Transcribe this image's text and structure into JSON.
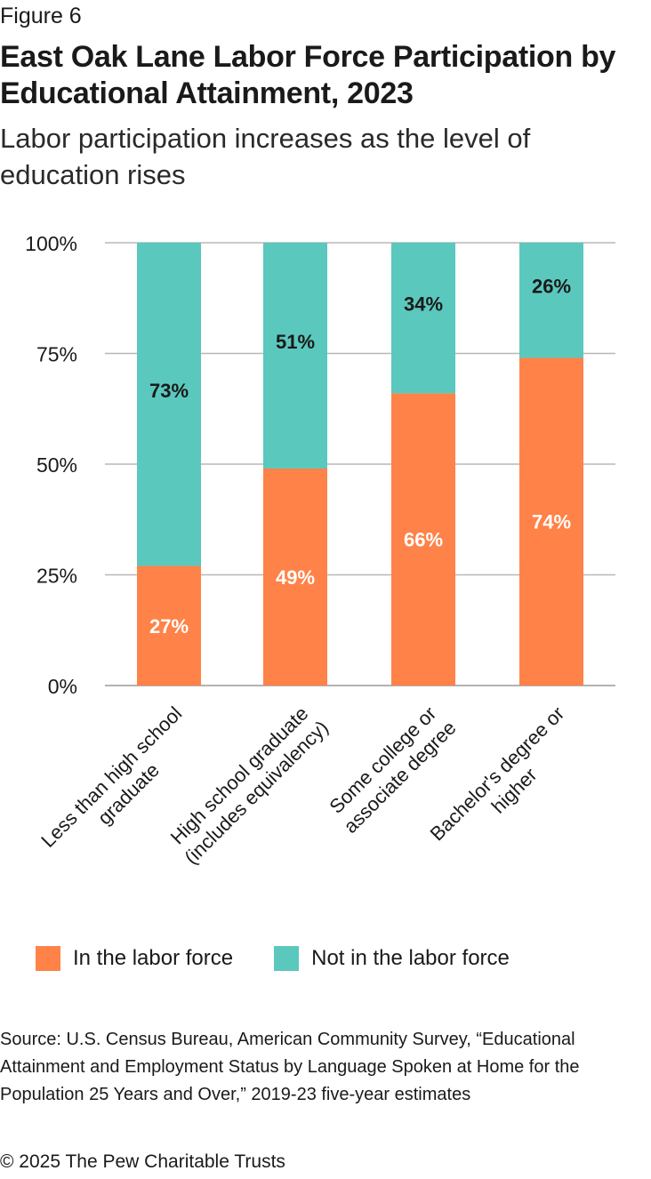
{
  "header": {
    "figure_label": "Figure 6",
    "title": "East Oak Lane Labor Force Participation by Educational Attainment, 2023",
    "subtitle": "Labor participation increases as the level of education rises"
  },
  "chart_data": {
    "type": "bar",
    "stacked": true,
    "categories": [
      [
        "Less than high school",
        "graduate"
      ],
      [
        "High school graduate",
        "(includes equivalency)"
      ],
      [
        "Some college or",
        "associate degree"
      ],
      [
        "Bachelor's degree or",
        "higher"
      ]
    ],
    "series": [
      {
        "name": "In the labor force",
        "color": "#FF8248",
        "label_color": "#ffffff",
        "values": [
          27,
          49,
          66,
          74
        ]
      },
      {
        "name": "Not in the labor force",
        "color": "#5BC8BE",
        "label_color": "#1a1a1a",
        "values": [
          73,
          51,
          34,
          26
        ]
      }
    ],
    "value_suffix": "%",
    "ylim": [
      0,
      100
    ],
    "yticks": [
      0,
      25,
      50,
      75,
      100
    ],
    "ytick_labels": [
      "0%",
      "25%",
      "50%",
      "75%",
      "100%"
    ],
    "grid": true,
    "legend_position": "bottom"
  },
  "footer": {
    "source": "Source: U.S. Census Bureau, American Community Survey, “Educational Attainment and Employment Status by Language Spoken at Home for the Population 25 Years and Over,” 2019-23 five-year estimates",
    "copyright": "© 2025 The Pew Charitable Trusts"
  }
}
